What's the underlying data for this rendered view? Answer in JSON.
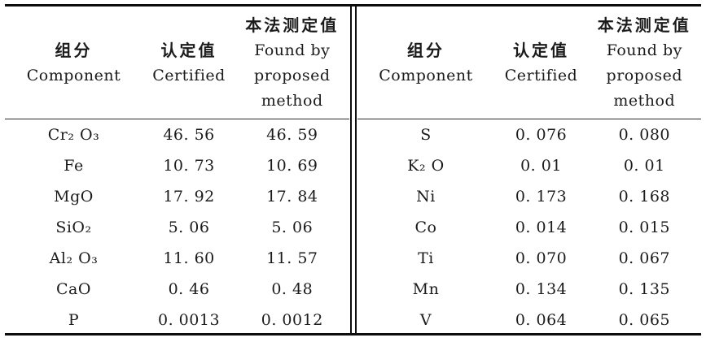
{
  "table": {
    "header": {
      "component_zh": "组分",
      "component_en": "Component",
      "certified_zh": "认定值",
      "certified_en": "Certified",
      "found_zh": "本法测定值",
      "found_en_line1": "Found by",
      "found_en_line2": "proposed",
      "found_en_line3": "method"
    },
    "left_rows": [
      {
        "component": "Cr₂ O₃",
        "certified": "46. 56",
        "found": "46. 59"
      },
      {
        "component": "Fe",
        "certified": "10. 73",
        "found": "10. 69"
      },
      {
        "component": "MgO",
        "certified": "17. 92",
        "found": "17. 84"
      },
      {
        "component": "SiO₂",
        "certified": "5. 06",
        "found": "5. 06"
      },
      {
        "component": "Al₂ O₃",
        "certified": "11. 60",
        "found": "11. 57"
      },
      {
        "component": "CaO",
        "certified": "0. 46",
        "found": "0. 48"
      },
      {
        "component": "P",
        "certified": "0. 0013",
        "found": "0. 0012"
      }
    ],
    "right_rows": [
      {
        "component": "S",
        "certified": "0. 076",
        "found": "0. 080"
      },
      {
        "component": "K₂ O",
        "certified": "0. 01",
        "found": "0. 01"
      },
      {
        "component": "Ni",
        "certified": "0. 173",
        "found": "0. 168"
      },
      {
        "component": "Co",
        "certified": "0. 014",
        "found": "0. 015"
      },
      {
        "component": "Ti",
        "certified": "0. 070",
        "found": "0. 067"
      },
      {
        "component": "Mn",
        "certified": "0. 134",
        "found": "0. 135"
      },
      {
        "component": "V",
        "certified": "0. 064",
        "found": "0. 065"
      }
    ]
  },
  "colors": {
    "text": "#1b1b1b",
    "rule": "#0d0d0d",
    "background": "#ffffff"
  }
}
